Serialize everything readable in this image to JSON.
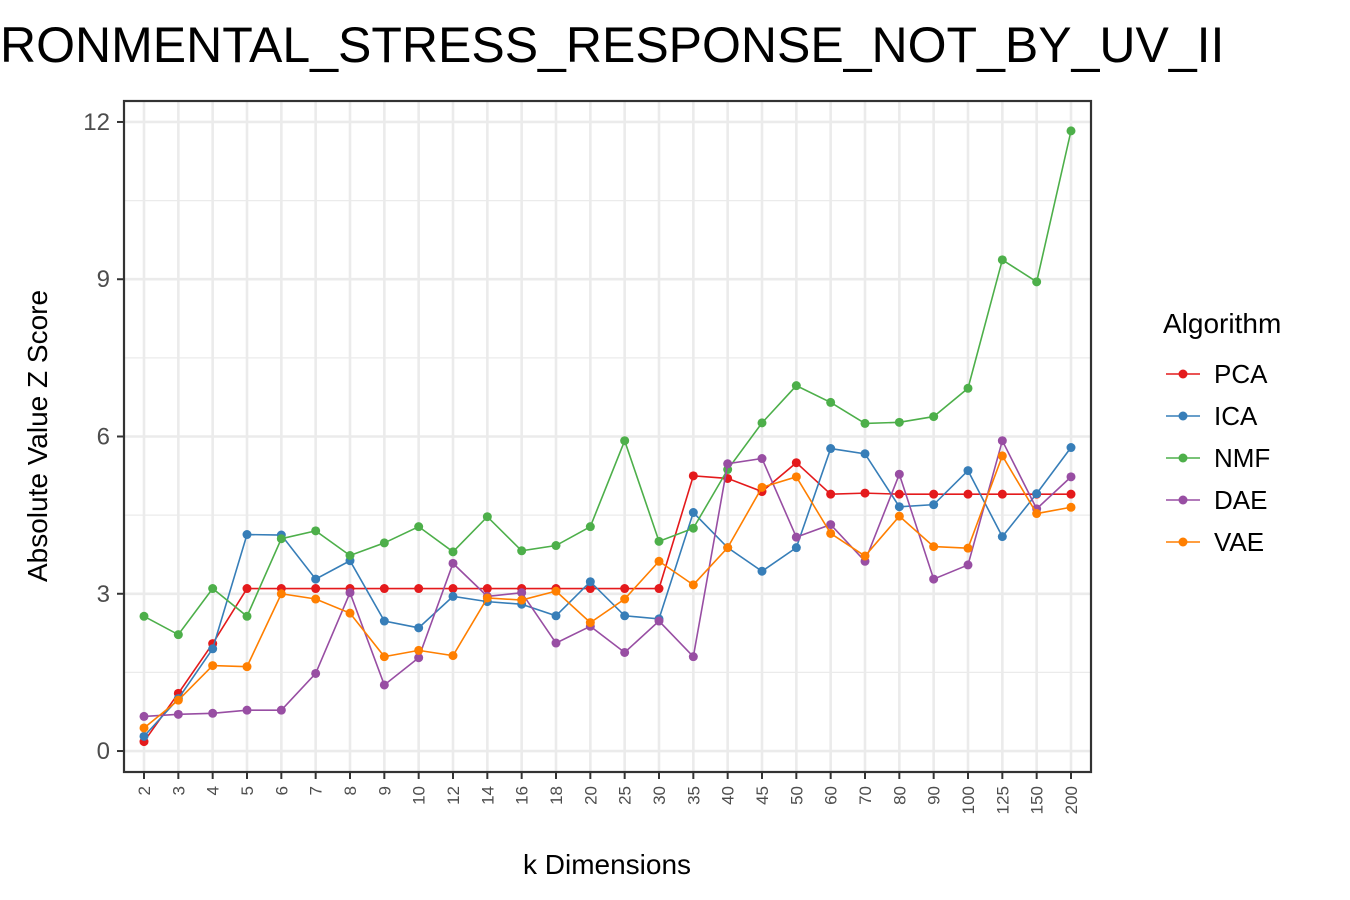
{
  "chart_data": {
    "type": "line",
    "title": "RONMENTAL_STRESS_RESPONSE_NOT_BY_UV_II",
    "xlabel": "k Dimensions",
    "ylabel": "Absolute Value Z Score",
    "categories": [
      "2",
      "3",
      "4",
      "5",
      "6",
      "7",
      "8",
      "9",
      "10",
      "12",
      "14",
      "16",
      "18",
      "20",
      "25",
      "30",
      "35",
      "40",
      "45",
      "50",
      "60",
      "70",
      "80",
      "90",
      "100",
      "125",
      "150",
      "200"
    ],
    "ylim": [
      -0.4,
      12.4
    ],
    "yticks": [
      0,
      3,
      6,
      9,
      12
    ],
    "grid": true,
    "legend": {
      "title": "Algorithm",
      "position": "right"
    },
    "series": [
      {
        "name": "PCA",
        "color": "#e41a1c",
        "values": [
          0.18,
          1.1,
          2.05,
          3.1,
          3.1,
          3.1,
          3.1,
          3.1,
          3.1,
          3.1,
          3.1,
          3.1,
          3.1,
          3.1,
          3.1,
          3.1,
          5.25,
          5.2,
          4.95,
          5.5,
          4.9,
          4.92,
          4.9,
          4.9,
          4.9,
          4.9,
          4.9,
          4.9
        ]
      },
      {
        "name": "ICA",
        "color": "#377eb8",
        "values": [
          0.28,
          1.0,
          1.95,
          4.13,
          4.12,
          3.28,
          3.63,
          2.48,
          2.35,
          2.95,
          2.85,
          2.8,
          2.58,
          3.23,
          2.58,
          2.52,
          4.55,
          3.88,
          3.43,
          3.88,
          5.77,
          5.67,
          4.66,
          4.7,
          5.35,
          4.09,
          4.91,
          5.79
        ]
      },
      {
        "name": "NMF",
        "color": "#4daf4a",
        "values": [
          2.57,
          2.22,
          3.1,
          2.57,
          4.05,
          4.2,
          3.73,
          3.97,
          4.28,
          3.8,
          4.47,
          3.82,
          3.92,
          4.28,
          5.92,
          4.0,
          4.25,
          5.37,
          6.26,
          6.97,
          6.65,
          6.25,
          6.27,
          6.38,
          6.92,
          9.37,
          8.95,
          11.83
        ]
      },
      {
        "name": "DAE",
        "color": "#984ea3",
        "values": [
          0.66,
          0.7,
          0.72,
          0.78,
          0.78,
          1.48,
          3.02,
          1.26,
          1.78,
          3.58,
          2.95,
          3.02,
          2.06,
          2.38,
          1.88,
          2.48,
          1.8,
          5.48,
          5.58,
          4.08,
          4.32,
          3.62,
          5.28,
          3.28,
          3.55,
          5.92,
          4.62,
          5.23
        ]
      },
      {
        "name": "VAE",
        "color": "#ff7f00",
        "values": [
          0.44,
          0.97,
          1.63,
          1.61,
          3.0,
          2.9,
          2.63,
          1.8,
          1.92,
          1.82,
          2.92,
          2.88,
          3.05,
          2.45,
          2.9,
          3.62,
          3.17,
          3.88,
          5.03,
          5.23,
          4.15,
          3.72,
          4.48,
          3.9,
          3.87,
          5.63,
          4.53,
          4.65
        ]
      }
    ]
  }
}
